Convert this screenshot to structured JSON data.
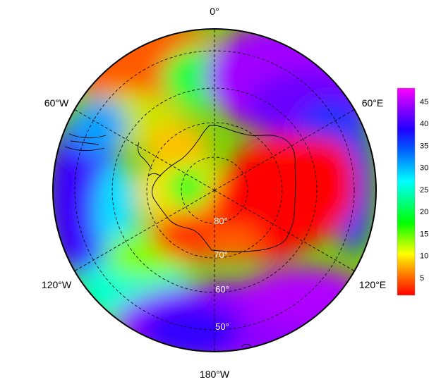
{
  "map": {
    "projection": "south-polar-stereographic",
    "longitude_labels": {
      "top": "0°",
      "upper_left": "60°W",
      "upper_right": "60°E",
      "lower_left": "120°W",
      "lower_right": "120°E",
      "bottom": "180°W"
    },
    "latitude_labels": [
      "80°",
      "70°",
      "60°",
      "50°"
    ],
    "graticule": {
      "style": "dashed",
      "meridians_deg": [
        0,
        60,
        120,
        180,
        240,
        300
      ],
      "parallels_deg": [
        -80,
        -70,
        -60,
        -50
      ]
    }
  },
  "colorbar": {
    "tick_labels": [
      "5",
      "10",
      "15",
      "20",
      "25",
      "30",
      "35",
      "40",
      "45"
    ],
    "range": [
      1,
      48
    ],
    "colormap": "red-yellow-green-cyan-blue-purple-magenta"
  }
}
